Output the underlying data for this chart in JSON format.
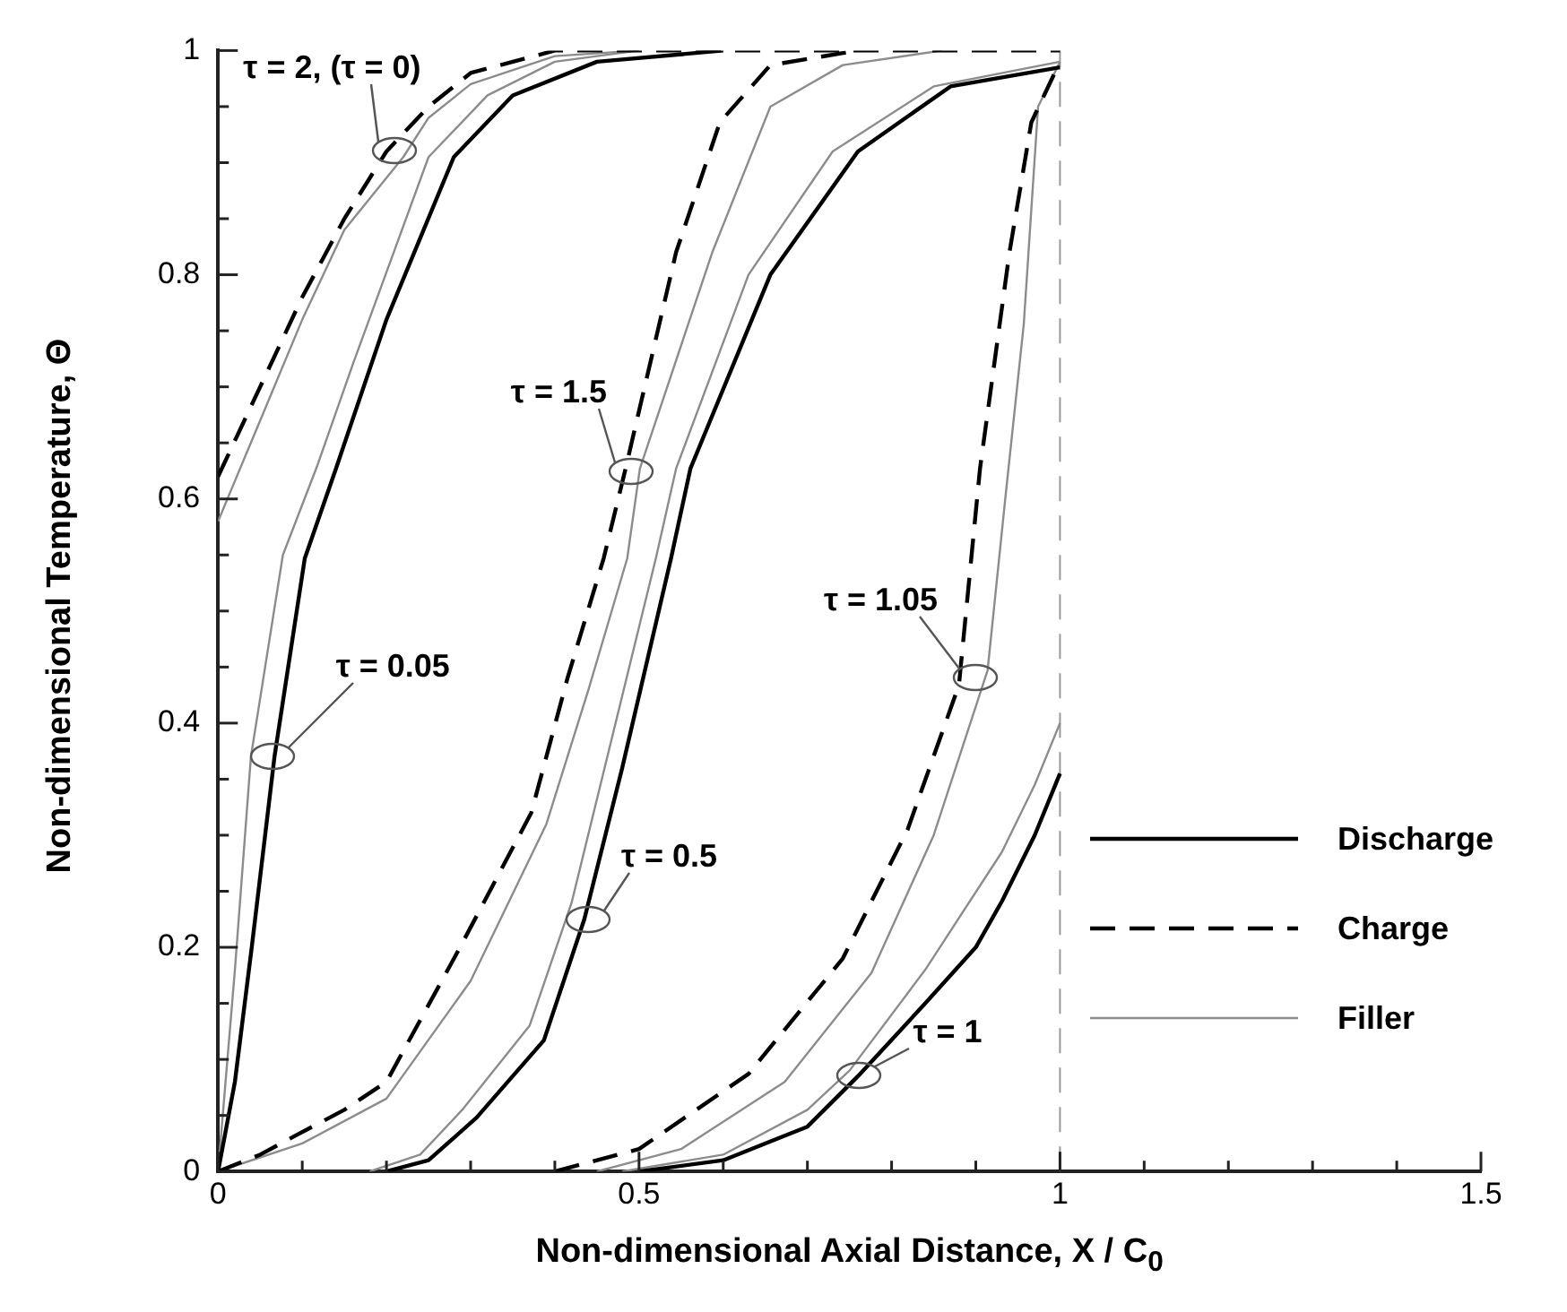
{
  "chart_data": {
    "type": "line",
    "xlabel": "Non-dimensional Axial Distance, X / C$_{0}$",
    "ylabel": "Non-dimensional Temperature, Θ",
    "xlim": [
      0,
      1.5
    ],
    "ylim": [
      0,
      1
    ],
    "xticks": [
      0,
      {
        "value": 0.1,
        "label": null
      },
      {
        "value": 0.2,
        "label": null
      },
      {
        "value": 0.3,
        "label": null
      },
      {
        "value": 0.4,
        "label": null
      },
      0.5,
      {
        "value": 0.6,
        "label": null
      },
      {
        "value": 0.7,
        "label": null
      },
      {
        "value": 0.8,
        "label": null
      },
      {
        "value": 0.9,
        "label": null
      },
      1,
      {
        "value": 1.1,
        "label": null
      },
      {
        "value": 1.2,
        "label": null
      },
      {
        "value": 1.3,
        "label": null
      },
      {
        "value": 1.4,
        "label": null
      },
      1.5
    ],
    "yticks": [
      0,
      {
        "value": 0.05,
        "label": null
      },
      {
        "value": 0.1,
        "label": null
      },
      {
        "value": 0.15,
        "label": null
      },
      0.2,
      {
        "value": 0.25,
        "label": null
      },
      {
        "value": 0.3,
        "label": null
      },
      {
        "value": 0.35,
        "label": null
      },
      0.4,
      {
        "value": 0.45,
        "label": null
      },
      {
        "value": 0.5,
        "label": null
      },
      {
        "value": 0.55,
        "label": null
      },
      0.6,
      {
        "value": 0.65,
        "label": null
      },
      {
        "value": 0.7,
        "label": null
      },
      {
        "value": 0.75,
        "label": null
      },
      0.8,
      {
        "value": 0.85,
        "label": null
      },
      {
        "value": 0.9,
        "label": null
      },
      {
        "value": 0.95,
        "label": null
      },
      1
    ],
    "grid": false,
    "legend": "right",
    "marker": "none",
    "series": [
      {
        "name": "Discharge",
        "color": "#000000",
        "line_style": "solid",
        "x": [
          0,
          0.02,
          0.04,
          0.067,
          0.103,
          0.14,
          0.2,
          0.28,
          0.35,
          0.45,
          0.6
        ],
        "values": [
          0,
          0.08,
          0.2,
          0.37,
          0.547,
          0.627,
          0.76,
          0.905,
          0.96,
          0.99,
          1
        ]
      },
      {
        "name": "Charge",
        "color": "#000000",
        "line_style": "dashed",
        "x": [
          0,
          0.05,
          0.1,
          0.15,
          0.2,
          0.25,
          0.3,
          0.4,
          1
        ],
        "values": [
          0.62,
          0.7,
          0.78,
          0.85,
          0.91,
          0.95,
          0.98,
          1,
          1
        ]
      },
      {
        "name": "Filler",
        "color": "#8c8c8c",
        "line_style": "solid",
        "x": [
          0,
          0.05,
          0.1,
          0.15,
          0.22,
          0.25,
          0.3,
          0.4,
          0.5
        ],
        "values": [
          0.58,
          0.67,
          0.76,
          0.84,
          0.905,
          0.94,
          0.97,
          0.995,
          1
        ]
      },
      {
        "color": "#8c8c8c",
        "line_style": "solid",
        "x": [
          0,
          0.02,
          0.039,
          0.077,
          0.118,
          0.16,
          0.25,
          0.32,
          0.4,
          0.5
        ],
        "values": [
          0,
          0.18,
          0.37,
          0.55,
          0.63,
          0.72,
          0.905,
          0.96,
          0.99,
          1
        ]
      },
      {
        "color": "#000000",
        "line_style": "solid",
        "x": [
          0.2,
          0.25,
          0.307,
          0.387,
          0.435,
          0.48,
          0.538,
          0.561,
          0.656,
          0.76,
          0.87,
          1
        ],
        "values": [
          0,
          0.01,
          0.048,
          0.117,
          0.225,
          0.36,
          0.547,
          0.627,
          0.8,
          0.91,
          0.968,
          0.985
        ]
      },
      {
        "color": "#000000",
        "line_style": "dashed",
        "x": [
          0,
          0.05,
          0.092,
          0.15,
          0.2,
          0.286,
          0.372,
          0.415,
          0.458,
          0.484,
          0.544,
          0.596,
          0.656,
          0.76
        ],
        "values": [
          0,
          0.015,
          0.032,
          0.055,
          0.08,
          0.198,
          0.32,
          0.44,
          0.547,
          0.627,
          0.82,
          0.936,
          0.987,
          1
        ]
      },
      {
        "color": "#8c8c8c",
        "line_style": "solid",
        "x": [
          0,
          0.1,
          0.2,
          0.3,
          0.39,
          0.44,
          0.486,
          0.501,
          0.587,
          0.656,
          0.742,
          0.86
        ],
        "values": [
          0,
          0.025,
          0.065,
          0.17,
          0.31,
          0.43,
          0.547,
          0.627,
          0.82,
          0.95,
          0.987,
          1
        ]
      },
      {
        "color": "#8c8c8c",
        "line_style": "solid",
        "x": [
          0.18,
          0.24,
          0.29,
          0.37,
          0.42,
          0.52,
          0.544,
          0.63,
          0.73,
          0.85,
          1
        ],
        "values": [
          0,
          0.015,
          0.055,
          0.13,
          0.24,
          0.547,
          0.627,
          0.8,
          0.91,
          0.968,
          0.99
        ]
      },
      {
        "color": "#000000",
        "line_style": "solid",
        "x": [
          0.5,
          0.6,
          0.7,
          0.76,
          0.84,
          0.9,
          0.931,
          0.97,
          1
        ],
        "values": [
          0,
          0.01,
          0.04,
          0.085,
          0.15,
          0.2,
          0.241,
          0.3,
          0.355
        ]
      },
      {
        "color": "#000000",
        "line_style": "dashed",
        "x": [
          0.4,
          0.5,
          0.63,
          0.742,
          0.819,
          0.88,
          0.905,
          0.94,
          0.966,
          1
        ],
        "values": [
          0,
          0.02,
          0.087,
          0.19,
          0.305,
          0.434,
          0.627,
          0.82,
          0.936,
          0.99
        ]
      },
      {
        "color": "#8c8c8c",
        "line_style": "solid",
        "x": [
          0.45,
          0.55,
          0.673,
          0.776,
          0.85,
          0.914,
          0.935,
          0.957,
          0.974,
          1
        ],
        "values": [
          0,
          0.02,
          0.08,
          0.177,
          0.3,
          0.447,
          0.6,
          0.756,
          0.95,
          0.99
        ]
      },
      {
        "color": "#8c8c8c",
        "line_style": "solid",
        "x": [
          0.48,
          0.6,
          0.7,
          0.75,
          0.84,
          0.931,
          0.97,
          1
        ],
        "values": [
          0,
          0.015,
          0.055,
          0.09,
          0.18,
          0.285,
          0.345,
          0.4
        ]
      }
    ],
    "ref_lines": [
      {
        "axis": "x",
        "value": 1,
        "color": "#999999",
        "line_style": "dashed"
      }
    ],
    "annotations": [
      {
        "text": "τ = 2, (τ = 0)",
        "x": 0.21,
        "y": 0.91
      },
      {
        "text": "τ = 1.5",
        "x": 0.49,
        "y": 0.625
      },
      {
        "text": "τ = 0.05",
        "x": 0.065,
        "y": 0.37
      },
      {
        "text": "τ = 0.5",
        "x": 0.44,
        "y": 0.225
      },
      {
        "text": "τ = 1.05",
        "x": 0.9,
        "y": 0.44
      },
      {
        "text": "τ = 1",
        "x": 0.76,
        "y": 0.085
      }
    ]
  }
}
